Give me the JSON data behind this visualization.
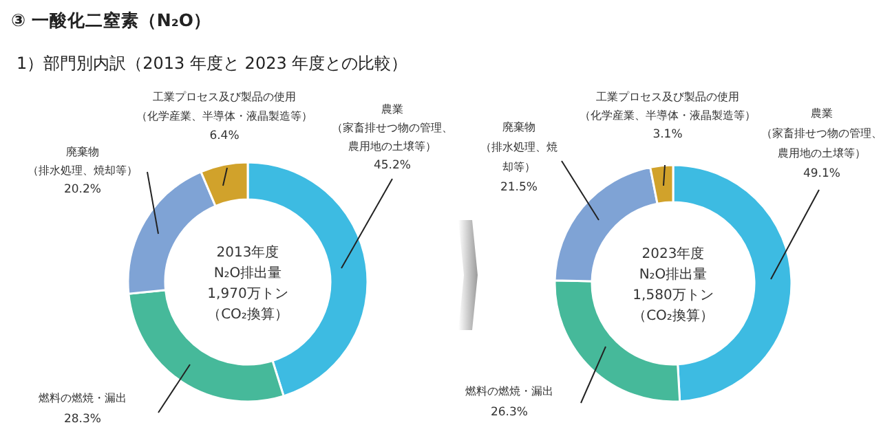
{
  "chart_data": [
    {
      "type": "donut",
      "title": "③ 一酸化二窒素（N₂O）",
      "subtitle": "1）部門別内訳（2013 年度と 2023 年度との比較）",
      "categories": [
        "農業（家畜排せつ物の管理、農用地の土壌等）",
        "燃料の燃焼・漏出",
        "廃棄物（排水処理、焼却等）",
        "工業プロセス及び製品の使用（化学産業、半導体・液晶製造等）"
      ],
      "values": [
        45.2,
        28.3,
        20.2,
        6.4
      ],
      "colors": [
        "#3dbbe2",
        "#46b99a",
        "#7fa3d5",
        "#d1a22b"
      ],
      "value_labels": [
        "45.2%",
        "28.3%",
        "20.2%",
        "6.4%"
      ],
      "annotations": [
        "2013年度",
        "N₂O排出量",
        "1,970万トン",
        "（CO₂換算）"
      ]
    },
    {
      "type": "donut",
      "categories": [
        "農業（家畜排せつ物の管理、農用地の土壌等）",
        "燃料の燃焼・漏出",
        "廃棄物（排水処理、焼却等）",
        "工業プロセス及び製品の使用（化学産業、半導体・液晶製造等）"
      ],
      "values": [
        49.1,
        26.3,
        21.5,
        3.1
      ],
      "colors": [
        "#3dbbe2",
        "#46b99a",
        "#7fa3d5",
        "#d1a22b"
      ],
      "value_labels": [
        "49.1%",
        "26.3%",
        "21.5%",
        "3.1%"
      ],
      "annotations": [
        "2023年度",
        "N₂O排出量",
        "1,580万トン",
        "（CO₂換算）"
      ]
    }
  ]
}
